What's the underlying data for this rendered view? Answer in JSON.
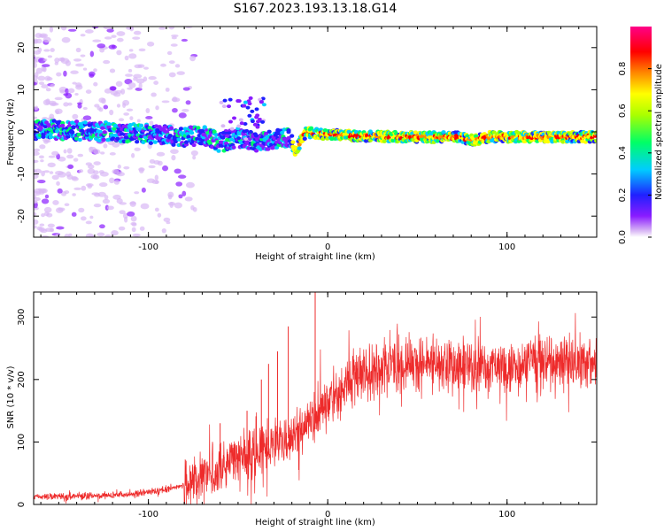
{
  "title": "S167.2023.193.13.18.G14",
  "chart_data": [
    {
      "type": "heatmap",
      "name": "spectrogram",
      "xlabel": "Height of straight line (km)",
      "ylabel": "Frequency (Hz)",
      "xlim": [
        -164,
        150
      ],
      "ylim": [
        -25,
        25
      ],
      "xticks": [
        -100,
        0,
        100
      ],
      "yticks": [
        -20,
        -10,
        0,
        10,
        20
      ],
      "colorbar": {
        "label": "Normalized spectral amplitude",
        "range": [
          0,
          1
        ],
        "ticks": [
          0.0,
          0.2,
          0.4,
          0.6,
          0.8
        ],
        "colors": [
          "#ffffff",
          "#d9b8f5",
          "#8a1cff",
          "#2020ff",
          "#00ccff",
          "#00ff66",
          "#aaff00",
          "#ffff00",
          "#ff8800",
          "#ff0000",
          "#ff0088"
        ]
      },
      "ridge_frequency": [
        {
          "x": -160,
          "y": 0.5
        },
        {
          "x": -140,
          "y": 0.3
        },
        {
          "x": -120,
          "y": 0
        },
        {
          "x": -100,
          "y": -0.5
        },
        {
          "x": -80,
          "y": -1.2
        },
        {
          "x": -70,
          "y": -0.8
        },
        {
          "x": -60,
          "y": -2.5
        },
        {
          "x": -50,
          "y": -1.5
        },
        {
          "x": -40,
          "y": -2.5
        },
        {
          "x": -30,
          "y": -1.8
        },
        {
          "x": -22,
          "y": -1.5
        },
        {
          "x": -18,
          "y": -4.5
        },
        {
          "x": -12,
          "y": 0
        },
        {
          "x": 0,
          "y": -0.7
        },
        {
          "x": 40,
          "y": -1.2
        },
        {
          "x": 75,
          "y": -1.3
        },
        {
          "x": 80,
          "y": -2.0
        },
        {
          "x": 90,
          "y": -1.2
        },
        {
          "x": 150,
          "y": -1.2
        }
      ]
    },
    {
      "type": "line",
      "name": "snr",
      "xlabel": "Height of straight line (km)",
      "ylabel": "SNR (10 * v/v)",
      "xlim": [
        -164,
        150
      ],
      "ylim": [
        0,
        340
      ],
      "xticks": [
        -100,
        0,
        100
      ],
      "yticks": [
        0,
        100,
        200,
        300
      ],
      "color": "#ee2b2b",
      "series": [
        {
          "values": [
            {
              "x": -164,
              "y": 12
            },
            {
              "x": -150,
              "y": 13
            },
            {
              "x": -130,
              "y": 14
            },
            {
              "x": -110,
              "y": 16
            },
            {
              "x": -90,
              "y": 24
            },
            {
              "x": -80,
              "y": 32
            },
            {
              "x": -70,
              "y": 45
            },
            {
              "x": -60,
              "y": 60
            },
            {
              "x": -50,
              "y": 75
            },
            {
              "x": -40,
              "y": 88
            },
            {
              "x": -30,
              "y": 98
            },
            {
              "x": -20,
              "y": 108
            },
            {
              "x": -10,
              "y": 135
            },
            {
              "x": 0,
              "y": 165
            },
            {
              "x": 10,
              "y": 190
            },
            {
              "x": 20,
              "y": 210
            },
            {
              "x": 30,
              "y": 220
            },
            {
              "x": 50,
              "y": 225
            },
            {
              "x": 70,
              "y": 225
            },
            {
              "x": 90,
              "y": 220
            },
            {
              "x": 110,
              "y": 225
            },
            {
              "x": 130,
              "y": 230
            },
            {
              "x": 150,
              "y": 230
            }
          ]
        }
      ],
      "peaks": [
        {
          "x": -7,
          "y": 340
        },
        {
          "x": -22,
          "y": 285
        },
        {
          "x": -28,
          "y": 245
        },
        {
          "x": -33,
          "y": 225
        },
        {
          "x": -37,
          "y": 200
        },
        {
          "x": -45,
          "y": 150
        },
        {
          "x": -60,
          "y": 130
        }
      ]
    }
  ]
}
